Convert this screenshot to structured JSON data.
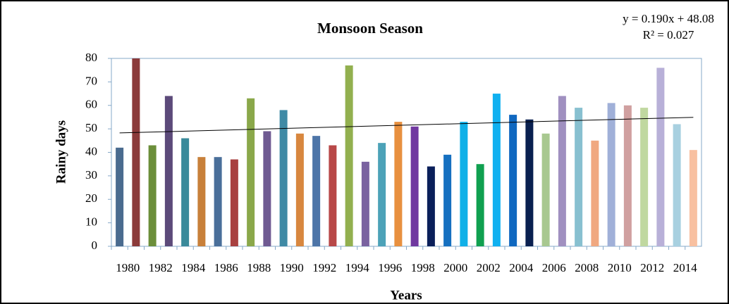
{
  "chart_data": {
    "type": "bar",
    "title": "Monsoon Season",
    "x_label": "Years",
    "y_label": "Rainy days",
    "categories": [
      "1980",
      null,
      "1982",
      null,
      "1984",
      null,
      "1986",
      null,
      "1988",
      null,
      "1990",
      null,
      "1992",
      null,
      "1994",
      null,
      "1996",
      null,
      "1998",
      null,
      "2000",
      null,
      "2002",
      null,
      "2004",
      null,
      "2006",
      null,
      "2008",
      null,
      "2010",
      null,
      "2012",
      null,
      "2014",
      null
    ],
    "values": [
      42,
      80,
      43,
      64,
      46,
      38,
      38,
      37,
      63,
      49,
      58,
      48,
      47,
      43,
      77,
      36,
      44,
      53,
      51,
      34,
      39,
      53,
      35,
      65,
      56,
      54,
      48,
      64,
      59,
      45,
      61,
      60,
      59,
      76,
      52,
      41
    ],
    "colors": [
      "#4a6b8f",
      "#8b3a3a",
      "#6b8e3a",
      "#5c4a7a",
      "#3a8a9a",
      "#c8803a",
      "#4a6f9a",
      "#a84040",
      "#8aa84a",
      "#6f5a92",
      "#3f8aa5",
      "#d8873f",
      "#4d75a8",
      "#b84848",
      "#92b04f",
      "#7a62a0",
      "#4ca2b8",
      "#e8903f",
      "#7038a0",
      "#0a1f5a",
      "#1670c0",
      "#10b0e8",
      "#10a050",
      "#10b0f0",
      "#1068c0",
      "#0a2050",
      "#a8c890",
      "#a090c0",
      "#88c0d0",
      "#f0a880",
      "#a0b0d8",
      "#d0a0a0",
      "#c0d8a0",
      "#b8b0d8",
      "#a8d0e0",
      "#f8c0a0"
    ],
    "ylim": [
      0,
      80
    ],
    "yticks": [
      0,
      10,
      20,
      30,
      40,
      50,
      60,
      70,
      80
    ],
    "trendline": {
      "slope": 0.19,
      "intercept": 48.08,
      "equation": "y = 0.190x + 48.08",
      "r_squared": 0.027,
      "r_squared_label": "R² = 0.027"
    }
  }
}
